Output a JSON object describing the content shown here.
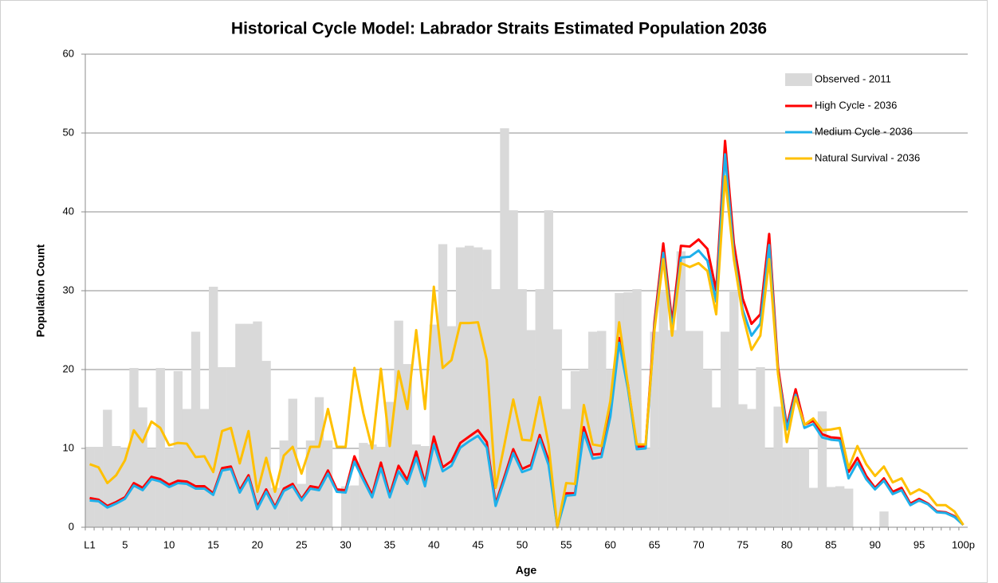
{
  "chart_data": {
    "type": "bar",
    "title": "Historical Cycle Model: Labrador Straits Estimated Population 2036",
    "x_label": "Age",
    "y_label": "Population Count",
    "categories": [
      "L1",
      null,
      null,
      null,
      "5",
      null,
      null,
      null,
      null,
      "10",
      null,
      null,
      null,
      null,
      "15",
      null,
      null,
      null,
      null,
      "20",
      null,
      null,
      null,
      null,
      "25",
      null,
      null,
      null,
      null,
      "30",
      null,
      null,
      null,
      null,
      "35",
      null,
      null,
      null,
      null,
      "40",
      null,
      null,
      null,
      null,
      "45",
      null,
      null,
      null,
      null,
      "50",
      null,
      null,
      null,
      null,
      "55",
      null,
      null,
      null,
      null,
      "60",
      null,
      null,
      null,
      null,
      "65",
      null,
      null,
      null,
      null,
      "70",
      null,
      null,
      null,
      null,
      "75",
      null,
      null,
      null,
      null,
      "80",
      null,
      null,
      null,
      null,
      "85",
      null,
      null,
      null,
      null,
      "90",
      null,
      null,
      null,
      null,
      "95",
      null,
      null,
      null,
      null,
      "100p"
    ],
    "series": [
      {
        "name": "Observed - 2011",
        "type": "bar",
        "color": "#d9d9d9",
        "values": [
          10.2,
          10.2,
          14.9,
          10.3,
          10,
          20.2,
          15.2,
          10,
          20.2,
          10,
          19.8,
          15,
          24.8,
          15,
          30.5,
          20.3,
          20.3,
          25.8,
          25.8,
          26.1,
          21.1,
          5,
          11,
          16.3,
          5.5,
          11,
          16.5,
          11,
          0,
          5.2,
          5.3,
          10.7,
          10.5,
          10.2,
          15.9,
          26.2,
          20.7,
          10.5,
          10.3,
          25.7,
          35.9,
          25.5,
          35.5,
          35.7,
          35.5,
          35.2,
          30.2,
          50.6,
          40.2,
          30.2,
          25,
          30.2,
          40.2,
          25.1,
          15,
          19.8,
          20,
          24.8,
          24.9,
          20,
          29.7,
          29.8,
          30.2,
          10,
          24.8,
          30,
          25,
          35,
          24.9,
          24.9,
          20,
          15.2,
          24.8,
          30,
          15.6,
          15,
          20.3,
          10,
          15.3,
          10,
          10,
          10,
          5,
          14.7,
          5.1,
          5.2,
          4.9,
          0,
          0,
          0,
          2,
          0,
          0,
          0,
          0,
          0,
          0,
          0,
          0,
          0
        ]
      },
      {
        "name": "High Cycle - 2036",
        "type": "line",
        "color": "#ff0000",
        "values": [
          3.7,
          3.5,
          2.7,
          3.2,
          3.8,
          5.6,
          5,
          6.4,
          6.1,
          5.4,
          5.9,
          5.8,
          5.2,
          5.2,
          4.3,
          7.5,
          7.7,
          4.7,
          6.6,
          2.6,
          4.8,
          2.6,
          4.9,
          5.5,
          3.6,
          5.2,
          5,
          7.2,
          4.8,
          4.7,
          9,
          6.4,
          4.1,
          8.2,
          4.1,
          7.8,
          6,
          9.6,
          5.6,
          11.5,
          7.6,
          8.4,
          10.7,
          11.5,
          12.3,
          10.8,
          3,
          6.4,
          9.9,
          7.4,
          7.9,
          11.7,
          8.5,
          0,
          4.3,
          4.3,
          12.7,
          9.2,
          9.3,
          14.8,
          24,
          18,
          10.2,
          10.3,
          26,
          36,
          26,
          35.7,
          35.6,
          36.5,
          35.3,
          30,
          49,
          36,
          29,
          25.8,
          27,
          37.2,
          20.3,
          12.8,
          17.5,
          13,
          13.5,
          11.8,
          11.4,
          11.3,
          7,
          8.8,
          6.5,
          5,
          6.2,
          4.5,
          5,
          3,
          3.6,
          3,
          2,
          1.9,
          1.4,
          0.3
        ]
      },
      {
        "name": "Medium Cycle - 2036",
        "type": "line",
        "color": "#1fb0ea",
        "values": [
          3.4,
          3.3,
          2.5,
          3,
          3.6,
          5.3,
          4.7,
          6.1,
          5.8,
          5.1,
          5.6,
          5.5,
          4.9,
          4.9,
          4.1,
          7.2,
          7.4,
          4.4,
          6.3,
          2.3,
          4.5,
          2.4,
          4.6,
          5.2,
          3.4,
          4.9,
          4.7,
          6.8,
          4.5,
          4.4,
          8.3,
          6,
          3.8,
          7.5,
          3.8,
          7.1,
          5.5,
          8.8,
          5.2,
          10.5,
          7.1,
          7.8,
          10.1,
          10.9,
          11.6,
          10.1,
          2.7,
          6,
          9.4,
          7,
          7.4,
          11.2,
          7.9,
          0,
          4,
          4.1,
          12,
          8.7,
          8.9,
          14,
          23.4,
          17.5,
          9.9,
          10,
          25.3,
          34.8,
          25.1,
          34.2,
          34.3,
          35.1,
          33.8,
          28.6,
          47.3,
          34.6,
          27.6,
          24.3,
          25.8,
          35.8,
          19.6,
          12.4,
          16.8,
          12.6,
          13.1,
          11.4,
          11.1,
          11,
          6.2,
          8.2,
          6.1,
          4.8,
          5.9,
          4.2,
          4.7,
          2.8,
          3.4,
          2.9,
          1.9,
          1.8,
          1.3,
          0.3
        ]
      },
      {
        "name": "Natural Survival - 2036",
        "type": "line",
        "color": "#ffc000",
        "values": [
          8,
          7.6,
          5.6,
          6.6,
          8.5,
          12.3,
          10.8,
          13.4,
          12.6,
          10.4,
          10.7,
          10.6,
          8.9,
          9,
          7,
          12.2,
          12.6,
          8.1,
          12.2,
          4.5,
          8.8,
          4.5,
          9.1,
          10.2,
          6.8,
          10.2,
          10.2,
          15,
          10.2,
          10.2,
          20.2,
          14.5,
          10,
          20.1,
          10.3,
          19.8,
          15,
          25,
          15,
          30.5,
          20.2,
          21.2,
          25.9,
          25.9,
          26,
          21.2,
          5,
          10.5,
          16.2,
          11.1,
          11,
          16.5,
          10.5,
          0,
          5.6,
          5.5,
          15.5,
          10.5,
          10.3,
          16,
          26,
          18,
          10.5,
          10.5,
          25,
          34,
          24.3,
          33.5,
          33,
          33.5,
          32.5,
          27,
          44.5,
          34,
          27,
          22.5,
          24.3,
          34,
          19.5,
          10.8,
          16.5,
          13,
          13.8,
          12.3,
          12.4,
          12.6,
          7.5,
          10.3,
          8,
          6.5,
          7.7,
          5.7,
          6.2,
          4.2,
          4.8,
          4.2,
          2.8,
          2.8,
          2,
          0.3
        ]
      }
    ],
    "ylim": [
      0,
      60
    ],
    "yticks": [
      0,
      10,
      20,
      30,
      40,
      50,
      60
    ],
    "grid": true,
    "legend": "upper right"
  }
}
